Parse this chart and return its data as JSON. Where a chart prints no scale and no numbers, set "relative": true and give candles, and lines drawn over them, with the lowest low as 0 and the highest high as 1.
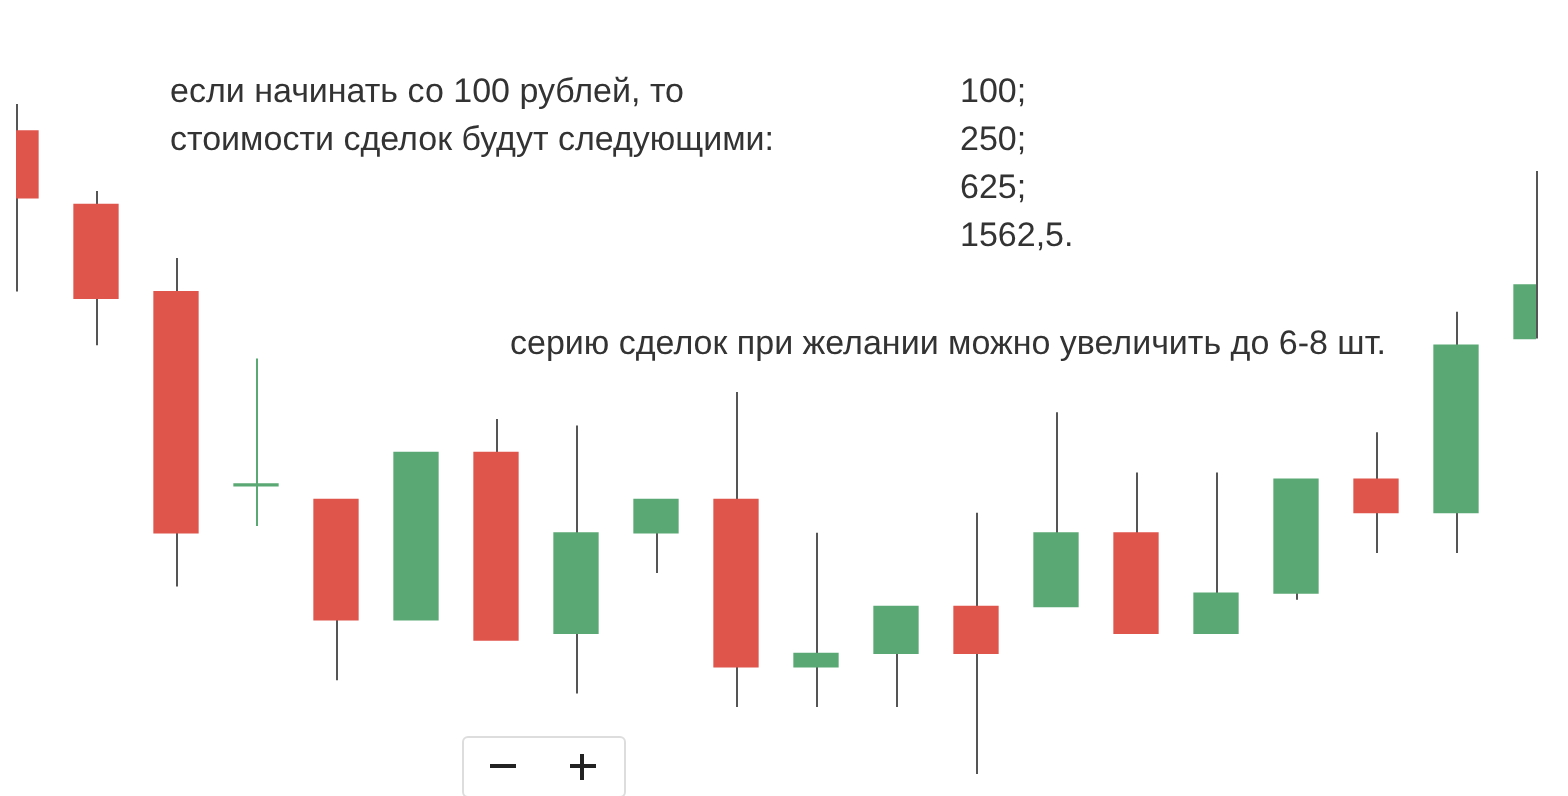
{
  "chart_data": {
    "type": "candlestick",
    "relative": true,
    "categories": [
      null,
      null,
      null,
      null,
      null,
      null,
      null,
      null,
      null,
      null,
      null,
      null,
      null,
      null,
      null,
      null,
      null,
      null,
      null,
      null
    ],
    "ohlc": [
      [
        0.96,
        1,
        0.72,
        0.86
      ],
      [
        0.85,
        0.87,
        0.64,
        0.71
      ],
      [
        0.72,
        0.77,
        0.28,
        0.36
      ],
      [
        0.43,
        0.62,
        0.37,
        0.43
      ],
      [
        0.41,
        0.41,
        0.14,
        0.23
      ],
      [
        0.23,
        0.48,
        0.23,
        0.48
      ],
      [
        0.48,
        0.53,
        0.2,
        0.2
      ],
      [
        0.21,
        0.52,
        0.12,
        0.36
      ],
      [
        0.36,
        0.41,
        0.3,
        0.41
      ],
      [
        0.41,
        0.57,
        0.1,
        0.16
      ],
      [
        0.16,
        0.36,
        0.1,
        0.18
      ],
      [
        0.18,
        0.25,
        0.1,
        0.25
      ],
      [
        0.25,
        0.39,
        0,
        0.18
      ],
      [
        0.25,
        0.54,
        0.25,
        0.36
      ],
      [
        0.36,
        0.45,
        0.21,
        0.21
      ],
      [
        0.21,
        0.45,
        0.21,
        0.27
      ],
      [
        0.27,
        0.44,
        0.26,
        0.44
      ],
      [
        0.44,
        0.51,
        0.33,
        0.39
      ],
      [
        0.39,
        0.69,
        0.33,
        0.64
      ],
      [
        0.65,
        0.9,
        0.65,
        0.73
      ]
    ],
    "colors": [
      "#e0554b",
      "#e0554b",
      "#e0554b",
      "#5aa974",
      "#e0554b",
      "#5aa974",
      "#e0554b",
      "#5aa974",
      "#5aa974",
      "#e0554b",
      "#5aa974",
      "#5aa974",
      "#e0554b",
      "#5aa974",
      "#e0554b",
      "#5aa974",
      "#5aa974",
      "#e0554b",
      "#5aa974",
      "#5aa974"
    ],
    "annotations": [
      "если начинать со 100 рублей, то",
      "стоимости сделок будут следующими:",
      "100;",
      "250;",
      "625;",
      "1562,5.",
      "серию сделок при желании можно увеличить до 6-8 шт."
    ]
  }
}
